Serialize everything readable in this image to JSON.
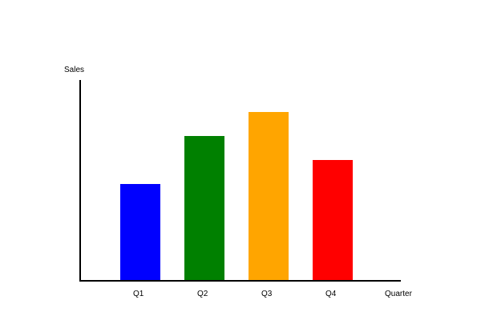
{
  "chart_data": {
    "type": "bar",
    "title": "",
    "xlabel": "Quarter",
    "ylabel": "Sales",
    "categories": [
      "Q1",
      "Q2",
      "Q3",
      "Q4"
    ],
    "values": [
      120,
      180,
      210,
      150
    ],
    "colors": [
      "#0000ff",
      "#008000",
      "#ffa500",
      "#ff0000"
    ],
    "ylim": [
      0,
      250
    ],
    "grid": false,
    "legend": "none"
  }
}
